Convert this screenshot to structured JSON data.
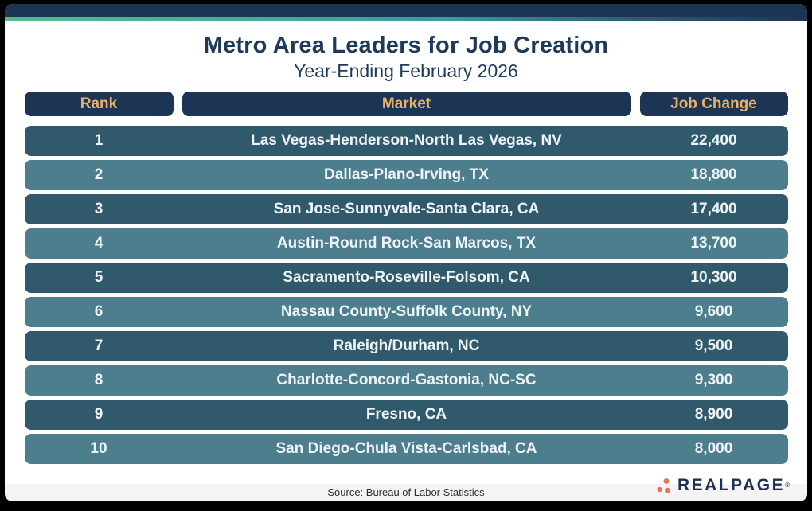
{
  "header": {
    "title": "Metro Area Leaders for Job Creation",
    "subtitle": "Year-Ending February 2026"
  },
  "table": {
    "columns": [
      "Rank",
      "Market",
      "Job Change"
    ],
    "rows": [
      {
        "rank": "1",
        "market": "Las Vegas-Henderson-North Las Vegas, NV",
        "job_change": "22,400"
      },
      {
        "rank": "2",
        "market": "Dallas-Plano-Irving, TX",
        "job_change": "18,800"
      },
      {
        "rank": "3",
        "market": "San Jose-Sunnyvale-Santa Clara, CA",
        "job_change": "17,400"
      },
      {
        "rank": "4",
        "market": "Austin-Round Rock-San Marcos, TX",
        "job_change": "13,700"
      },
      {
        "rank": "5",
        "market": "Sacramento-Roseville-Folsom, CA",
        "job_change": "10,300"
      },
      {
        "rank": "6",
        "market": "Nassau County-Suffolk County, NY",
        "job_change": "9,600"
      },
      {
        "rank": "7",
        "market": "Raleigh/Durham, NC",
        "job_change": "9,500"
      },
      {
        "rank": "8",
        "market": "Charlotte-Concord-Gastonia, NC-SC",
        "job_change": "9,300"
      },
      {
        "rank": "9",
        "market": "Fresno, CA",
        "job_change": "8,900"
      },
      {
        "rank": "10",
        "market": "San Diego-Chula Vista-Carlsbad, CA",
        "job_change": "8,000"
      }
    ]
  },
  "footer": {
    "source": "Source: Bureau of Labor Statistics",
    "brand": "REALPAGE",
    "registered": "®"
  },
  "colors": {
    "navy": "#1d3555",
    "title_navy": "#1e3a5a",
    "gold": "#e9b169",
    "row_dark_teal": "#30596c",
    "row_light_teal": "#4d7e8d",
    "gradient_green": "#58b88d",
    "gradient_teal": "#3b9aa3",
    "logo_dot_coral": "#e87454",
    "footer_strip": "#f4f4f4"
  },
  "chart_data": {
    "type": "table",
    "title": "Metro Area Leaders for Job Creation",
    "subtitle": "Year-Ending February 2026",
    "columns": [
      "Rank",
      "Market",
      "Job Change"
    ],
    "rows": [
      [
        1,
        "Las Vegas-Henderson-North Las Vegas, NV",
        22400
      ],
      [
        2,
        "Dallas-Plano-Irving, TX",
        18800
      ],
      [
        3,
        "San Jose-Sunnyvale-Santa Clara, CA",
        17400
      ],
      [
        4,
        "Austin-Round Rock-San Marcos, TX",
        13700
      ],
      [
        5,
        "Sacramento-Roseville-Folsom, CA",
        10300
      ],
      [
        6,
        "Nassau County-Suffolk County, NY",
        9600
      ],
      [
        7,
        "Raleigh/Durham, NC",
        9500
      ],
      [
        8,
        "Charlotte-Concord-Gastonia, NC-SC",
        9300
      ],
      [
        9,
        "Fresno, CA",
        8900
      ],
      [
        10,
        "San Diego-Chula Vista-Carlsbad, CA",
        8000
      ]
    ],
    "source": "Source: Bureau of Labor Statistics"
  }
}
